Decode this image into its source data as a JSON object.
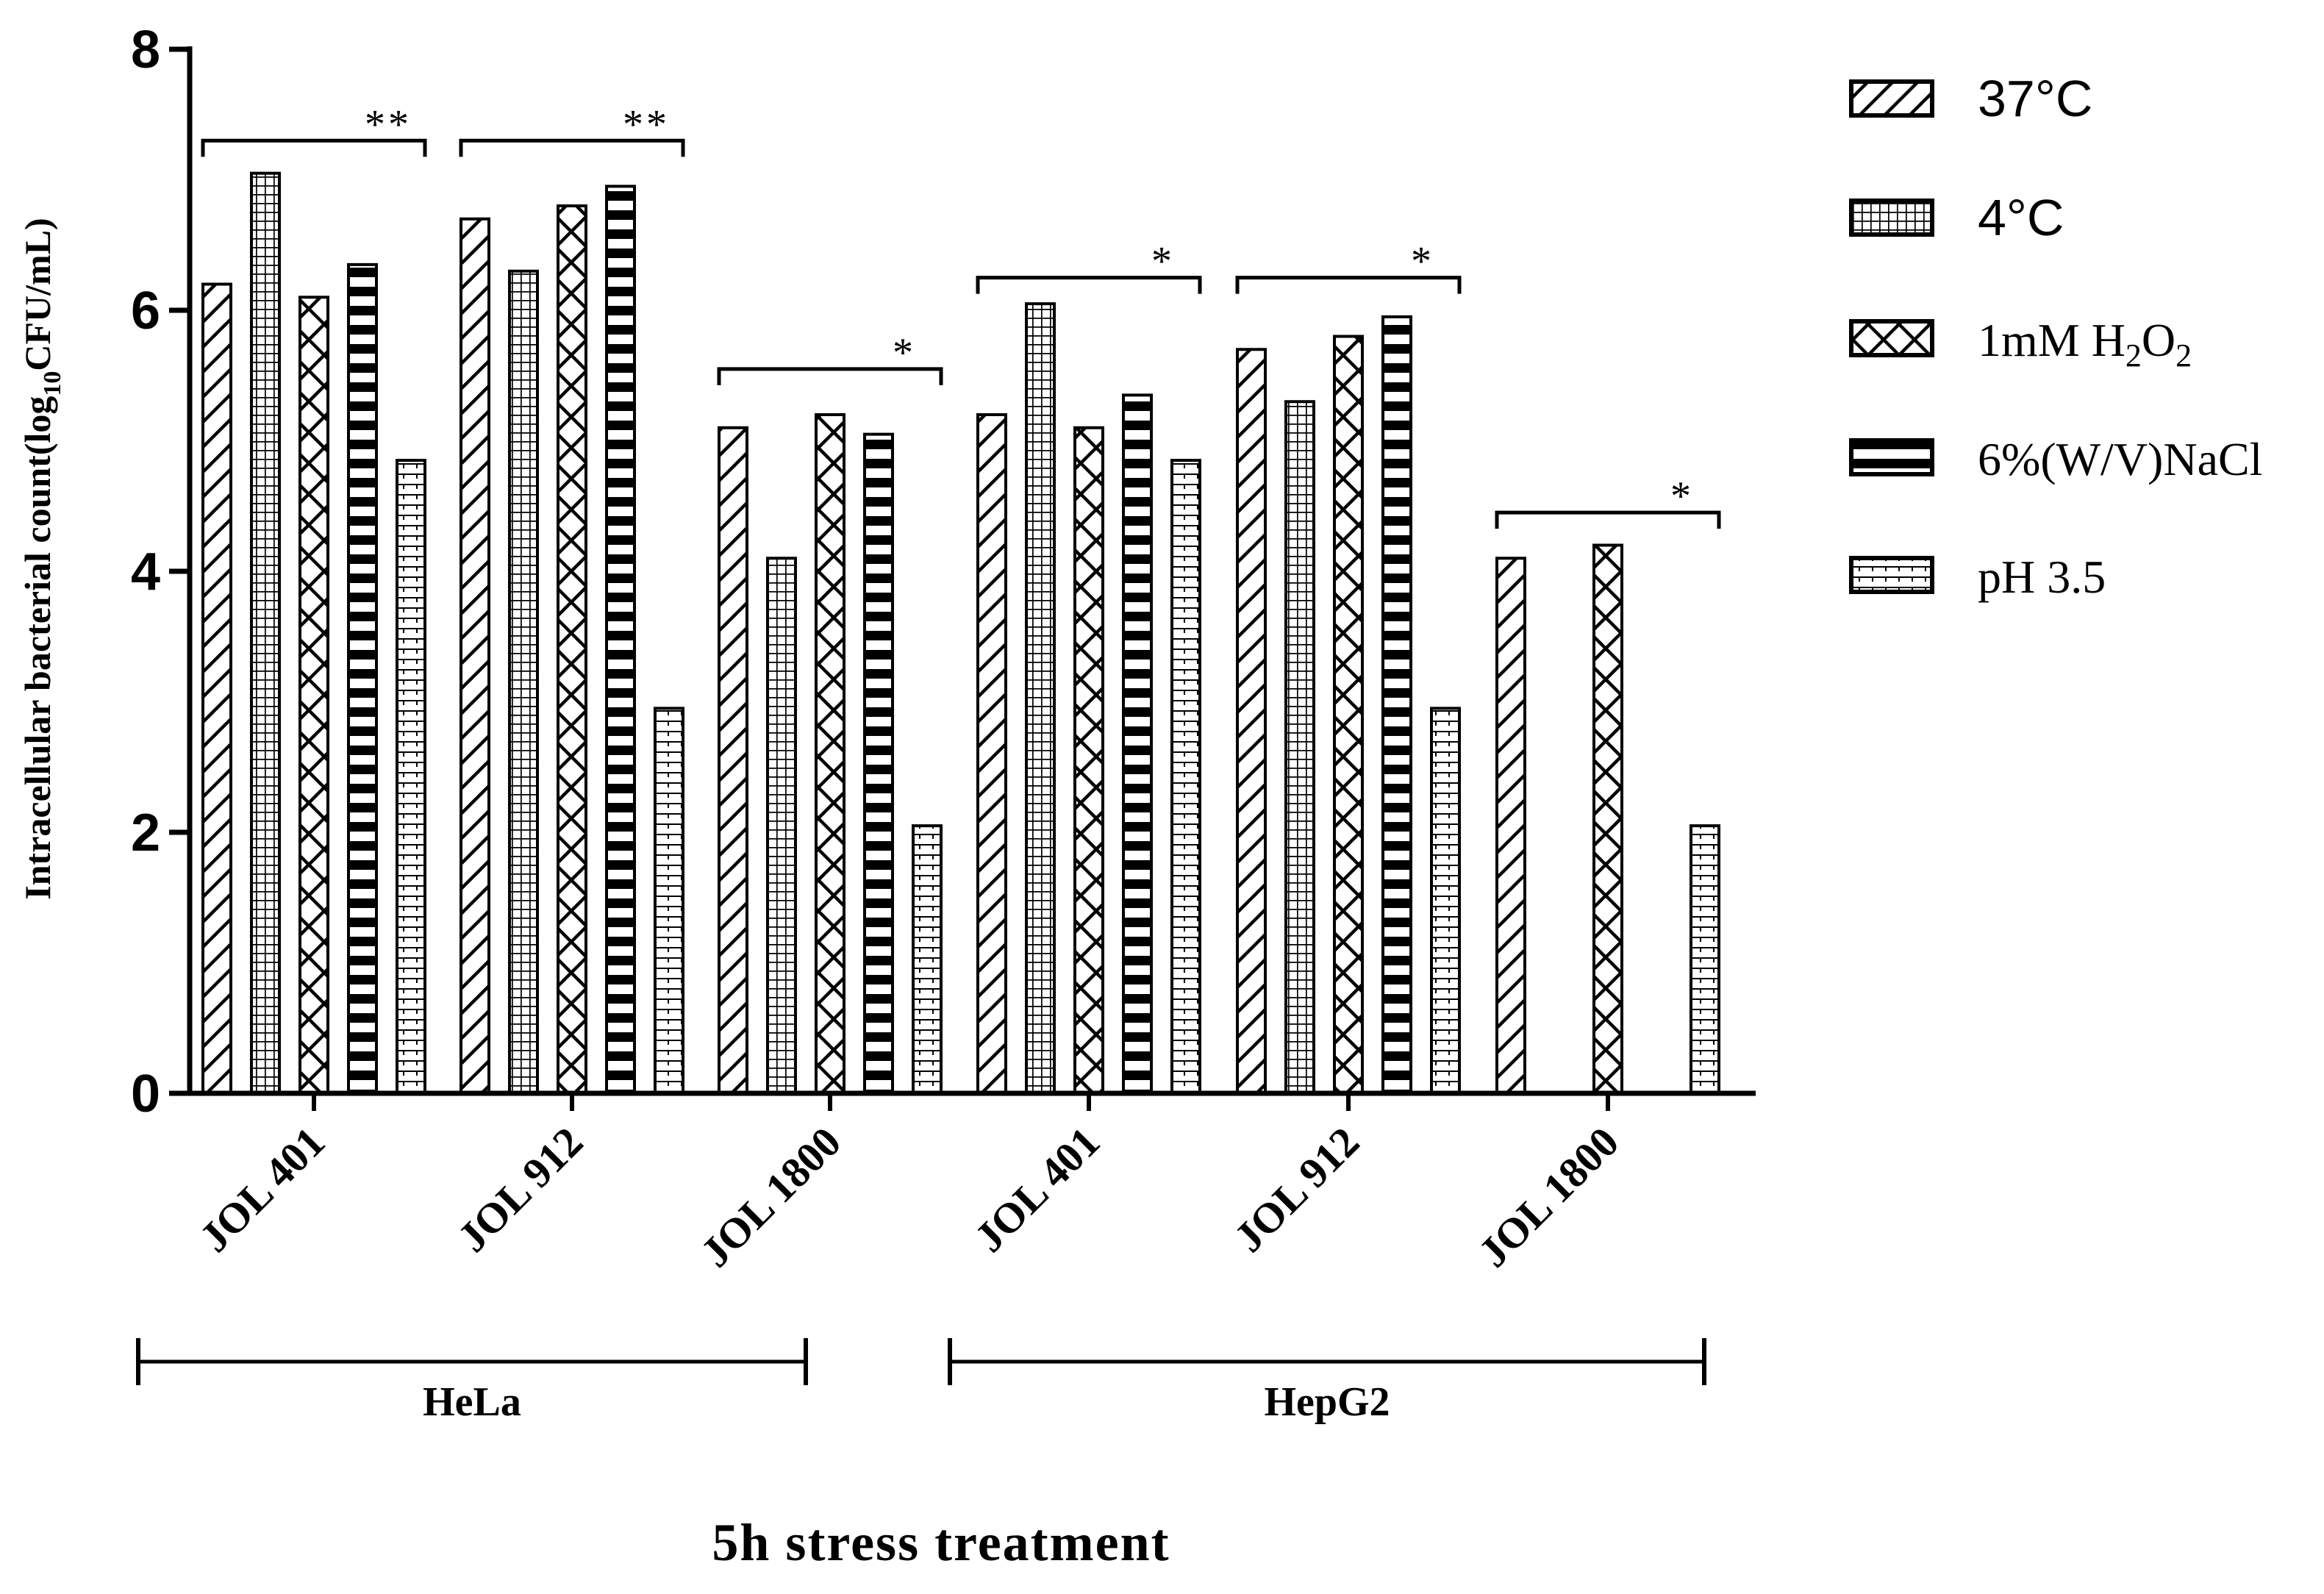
{
  "chart_data": {
    "type": "bar",
    "title": "",
    "xlabel": "5h stress treatment",
    "ylabel": {
      "prefix": "Intracellular bacterial count(log",
      "sub": "10",
      "suffix": "CFU/mL)"
    },
    "ylim": [
      0,
      8
    ],
    "yticks": [
      "0",
      "2",
      "4",
      "6",
      "8"
    ],
    "grid": false,
    "legend_position": "top-right",
    "categories": [
      "JOL 401",
      "JOL 912",
      "JOL 1800",
      "JOL 401",
      "JOL 912",
      "JOL 1800"
    ],
    "cell_groups": [
      {
        "label": "HeLa",
        "categories": [
          0,
          1,
          2
        ]
      },
      {
        "label": "HepG2",
        "categories": [
          3,
          4,
          5
        ]
      }
    ],
    "series": [
      {
        "name": "37°C",
        "pattern": "diagonal",
        "values": [
          6.2,
          6.7,
          5.1,
          5.2,
          5.7,
          4.1
        ]
      },
      {
        "name": "4°C",
        "pattern": "grid",
        "values": [
          7.05,
          6.3,
          4.1,
          6.05,
          5.3,
          null
        ]
      },
      {
        "name": "1mM H2O2",
        "pattern": "crosshatch",
        "values": [
          6.1,
          6.8,
          5.2,
          5.1,
          5.8,
          4.2
        ]
      },
      {
        "name": "6%(W/V)NaCl",
        "pattern": "thickhoriz",
        "values": [
          6.35,
          6.95,
          5.05,
          5.35,
          5.95,
          null
        ]
      },
      {
        "name": "pH 3.5",
        "pattern": "finehoriz",
        "values": [
          4.85,
          2.95,
          2.05,
          4.85,
          2.95,
          2.05
        ]
      }
    ],
    "legend_text": [
      {
        "main": "37°C"
      },
      {
        "main": "4°C"
      },
      {
        "main": "1mM H",
        "sub1": "2",
        "mid": "O",
        "sub2": "2"
      },
      {
        "main": "6%(W/V)NaCl"
      },
      {
        "main": "pH 3.5"
      }
    ],
    "significance": [
      {
        "category": 0,
        "label": "**",
        "y": 7.3
      },
      {
        "category": 1,
        "label": "**",
        "y": 7.3
      },
      {
        "category": 2,
        "label": "*",
        "y": 5.55
      },
      {
        "category": 3,
        "label": "*",
        "y": 6.25
      },
      {
        "category": 4,
        "label": "*",
        "y": 6.25
      },
      {
        "category": 5,
        "label": "*",
        "y": 4.45
      }
    ]
  }
}
